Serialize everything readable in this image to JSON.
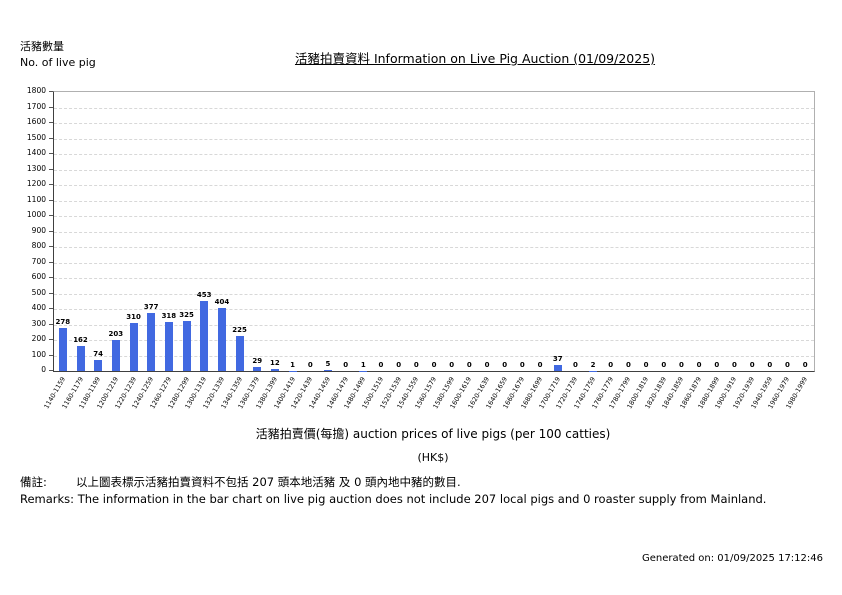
{
  "header": {
    "y_axis_title_zh": "活豬數量",
    "y_axis_title_en": "No. of live pig",
    "title": "活豬拍賣資料 Information on Live Pig Auction (01/09/2025)"
  },
  "chart_data": {
    "type": "bar",
    "title": "活豬拍賣資料 Information on Live Pig Auction (01/09/2025)",
    "xlabel": "活豬拍賣價(每擔) auction prices of live pigs (per 100 catties)",
    "xlabel_unit": "(HK$)",
    "ylabel": "活豬數量 No. of live pig",
    "ylim": [
      0,
      1800
    ],
    "ytick_step": 100,
    "grid": "horizontal-dashed",
    "legend": "none",
    "bar_color": "#4169e1",
    "categories": [
      "1140-1159",
      "1160-1179",
      "1180-1199",
      "1200-1219",
      "1220-1239",
      "1240-1259",
      "1260-1279",
      "1280-1299",
      "1300-1319",
      "1320-1339",
      "1340-1359",
      "1360-1379",
      "1380-1399",
      "1400-1419",
      "1420-1439",
      "1440-1459",
      "1460-1479",
      "1480-1499",
      "1500-1519",
      "1520-1539",
      "1540-1559",
      "1560-1579",
      "1580-1599",
      "1600-1619",
      "1620-1639",
      "1640-1659",
      "1660-1679",
      "1680-1699",
      "1700-1719",
      "1720-1739",
      "1740-1759",
      "1760-1779",
      "1780-1799",
      "1800-1819",
      "1820-1839",
      "1840-1859",
      "1860-1879",
      "1880-1899",
      "1900-1919",
      "1920-1939",
      "1940-1959",
      "1960-1979",
      "1980-1999"
    ],
    "values": [
      278,
      162,
      74,
      203,
      310,
      377,
      318,
      325,
      453,
      404,
      225,
      29,
      12,
      1,
      0,
      5,
      0,
      1,
      0,
      0,
      0,
      0,
      0,
      0,
      0,
      0,
      0,
      0,
      37,
      0,
      2,
      0,
      0,
      0,
      0,
      0,
      0,
      0,
      0,
      0,
      0,
      0,
      0
    ]
  },
  "footer": {
    "remark_zh_prefix": "備註:",
    "remark_zh": "以上圖表標示活豬拍賣資料不包括 207 頭本地活豬 及 0 頭內地中豬的數目.",
    "remark_en": "Remarks: The information in the bar chart on live pig auction does not include 207 local pigs and 0 roaster supply from Mainland.",
    "generated_on": "Generated on: 01/09/2025 17:12:46"
  }
}
